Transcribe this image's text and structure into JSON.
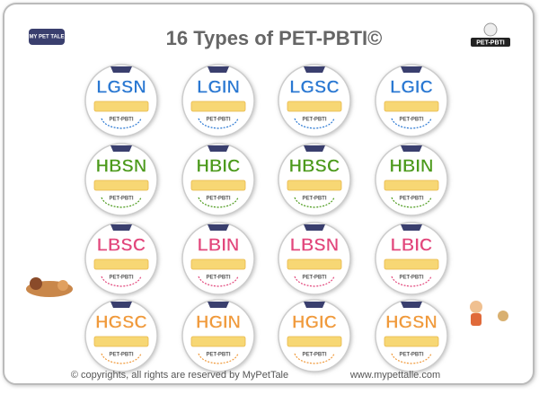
{
  "header": {
    "title": "16 Types of PET-PBTI©",
    "logo_left": "MY PET TALE",
    "logo_right": "PET-PBTI"
  },
  "rows": [
    {
      "color": "#2a78d2",
      "badges": [
        {
          "code": "LGSN",
          "label": "PET-PBTI"
        },
        {
          "code": "LGIN",
          "label": "PET-PBTI"
        },
        {
          "code": "LGSC",
          "label": "PET-PBTI"
        },
        {
          "code": "LGIC",
          "label": "PET-PBTI"
        }
      ]
    },
    {
      "color": "#4c9a1c",
      "badges": [
        {
          "code": "HBSN",
          "label": "PET-PBTI"
        },
        {
          "code": "HBIC",
          "label": "PET-PBTI"
        },
        {
          "code": "HBSC",
          "label": "PET-PBTI"
        },
        {
          "code": "HBIN",
          "label": "PET-PBTI"
        }
      ]
    },
    {
      "color": "#e2477c",
      "badges": [
        {
          "code": "LBSC",
          "label": "PET-PBTI"
        },
        {
          "code": "LBIN",
          "label": "PET-PBTI"
        },
        {
          "code": "LBSN",
          "label": "PET-PBTI"
        },
        {
          "code": "LBIC",
          "label": "PET-PBTI"
        }
      ]
    },
    {
      "color": "#f09a3c",
      "badges": [
        {
          "code": "HGSC",
          "label": "PET-PBTI"
        },
        {
          "code": "HGIN",
          "label": "PET-PBTI"
        },
        {
          "code": "HGIC",
          "label": "PET-PBTI"
        },
        {
          "code": "HGSN",
          "label": "PET-PBTI"
        }
      ]
    }
  ],
  "footer": {
    "copyright": "© copyrights, all rights are reserved by MyPetTale",
    "url": "www.mypettalle.com"
  }
}
